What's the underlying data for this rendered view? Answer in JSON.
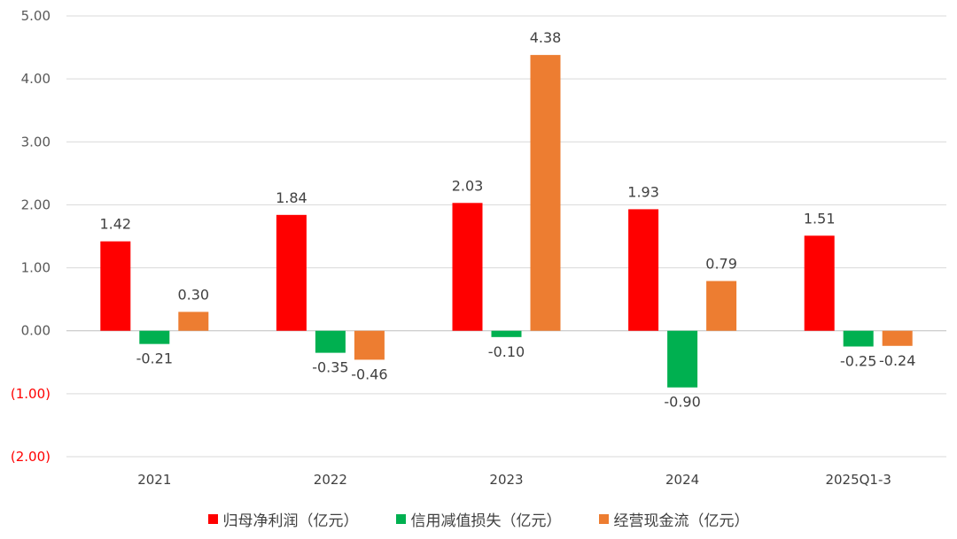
{
  "chart_data": {
    "type": "bar",
    "categories": [
      "2021",
      "2022",
      "2023",
      "2024",
      "2025Q1-3"
    ],
    "series": [
      {
        "name": "归母净利润（亿元）",
        "color": "#ff0000",
        "values": [
          1.42,
          1.84,
          2.03,
          1.93,
          1.51
        ]
      },
      {
        "name": "信用减值损失（亿元）",
        "color": "#00b050",
        "values": [
          -0.21,
          -0.35,
          -0.1,
          -0.9,
          -0.25
        ]
      },
      {
        "name": "经营现金流（亿元）",
        "color": "#ed7d31",
        "values": [
          0.3,
          -0.46,
          4.38,
          0.79,
          -0.24
        ]
      }
    ],
    "data_labels": [
      [
        "1.42",
        "1.84",
        "2.03",
        "1.93",
        "1.51"
      ],
      [
        "-0.21",
        "-0.35",
        "-0.10",
        "-0.90",
        "-0.25"
      ],
      [
        "0.30",
        "-0.46",
        "4.38",
        "0.79",
        "-0.24"
      ]
    ],
    "ylim": [
      -2,
      5
    ],
    "yticks": [
      5,
      4,
      3,
      2,
      1,
      0,
      -1,
      -2
    ],
    "ytick_labels": [
      "5.00",
      "4.00",
      "3.00",
      "2.00",
      "1.00",
      "0.00",
      "(1.00)",
      "(2.00)"
    ],
    "ytick_colors": [
      "#595959",
      "#595959",
      "#595959",
      "#595959",
      "#595959",
      "#595959",
      "#ff0000",
      "#ff0000"
    ],
    "grid": true,
    "legend_position": "bottom",
    "title": "",
    "xlabel": "",
    "ylabel": ""
  }
}
